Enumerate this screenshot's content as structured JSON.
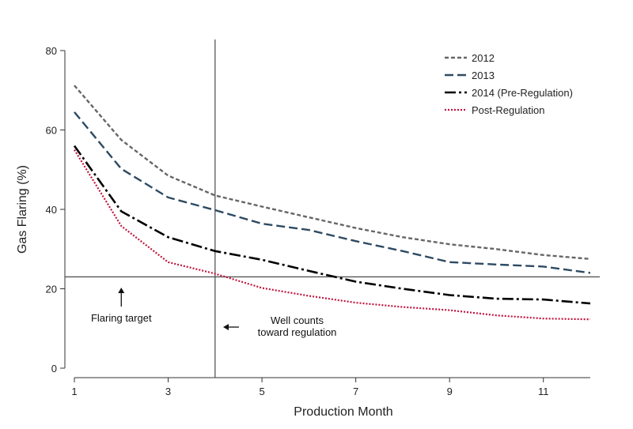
{
  "chart_data": {
    "type": "line",
    "title": "",
    "xlabel": "Production Month",
    "ylabel": "Gas Flaring (%)",
    "xlim": [
      1,
      12
    ],
    "ylim": [
      0,
      80
    ],
    "x_ticks": [
      1,
      3,
      5,
      7,
      9,
      11
    ],
    "y_ticks": [
      0,
      20,
      40,
      60,
      80
    ],
    "x": [
      1,
      2,
      3,
      4,
      5,
      6,
      7,
      8,
      9,
      10,
      11,
      12
    ],
    "grid": false,
    "legend_position": "top-right",
    "series": [
      {
        "name": "2012",
        "style": "dash",
        "color": "#666666",
        "values": [
          71.2,
          57.5,
          48.5,
          43.5,
          40.7,
          38.0,
          35.3,
          33.0,
          31.2,
          30.0,
          28.5,
          27.5
        ]
      },
      {
        "name": "2013",
        "style": "longdash",
        "color": "#2e4a62",
        "values": [
          64.5,
          50.2,
          43.0,
          39.8,
          36.4,
          34.8,
          32.0,
          29.5,
          26.7,
          26.1,
          25.6,
          24.0
        ]
      },
      {
        "name": "2014 (Pre-Regulation)",
        "style": "dashdot",
        "color": "#000000",
        "values": [
          56.0,
          39.5,
          33.0,
          29.5,
          27.3,
          24.5,
          21.8,
          20.0,
          18.4,
          17.5,
          17.3,
          16.3
        ]
      },
      {
        "name": "Post-Regulation",
        "style": "dot",
        "color": "#c0143c",
        "values": [
          55.0,
          35.8,
          26.7,
          23.8,
          20.2,
          18.2,
          16.5,
          15.4,
          14.6,
          13.3,
          12.5,
          12.3
        ]
      }
    ],
    "reference_lines": [
      {
        "orientation": "horizontal",
        "value": 23
      },
      {
        "orientation": "vertical",
        "value": 4
      }
    ],
    "annotations": [
      {
        "text": "Flaring target",
        "x": 2,
        "y": 12.5,
        "arrow": "up"
      },
      {
        "lines": [
          "Well counts",
          "toward regulation"
        ],
        "x": 5.75,
        "y": 11,
        "arrow": "left"
      }
    ]
  }
}
